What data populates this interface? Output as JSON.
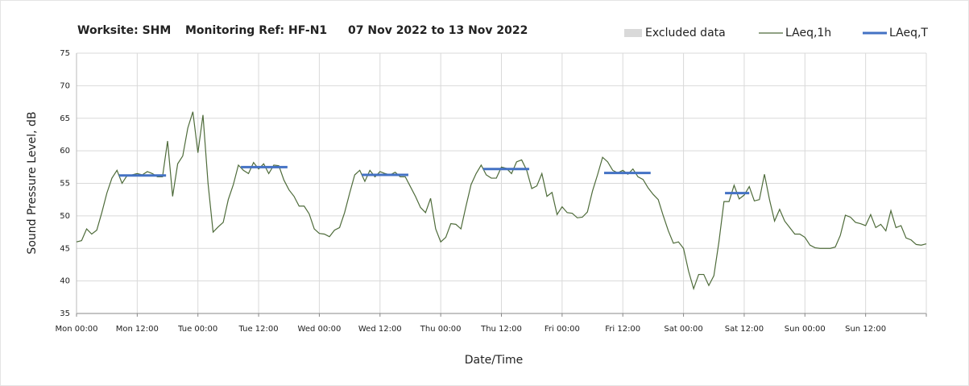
{
  "chart_data": {
    "type": "line",
    "title": [
      "Worksite: SHM",
      "Monitoring Ref: HF-N1",
      "07 Nov 2022 to 13 Nov 2022"
    ],
    "x_label": "Date/Time",
    "y_label": "Sound Pressure Level, dB",
    "xlim": [
      0,
      168
    ],
    "xticks": [
      {
        "value": 0,
        "label": "Mon 00:00"
      },
      {
        "value": 12,
        "label": "Mon 12:00"
      },
      {
        "value": 24,
        "label": "Tue 00:00"
      },
      {
        "value": 36,
        "label": "Tue 12:00"
      },
      {
        "value": 48,
        "label": "Wed 00:00"
      },
      {
        "value": 60,
        "label": "Wed 12:00"
      },
      {
        "value": 72,
        "label": "Thu 00:00"
      },
      {
        "value": 84,
        "label": "Thu 12:00"
      },
      {
        "value": 96,
        "label": "Fri 00:00"
      },
      {
        "value": 108,
        "label": "Fri 12:00"
      },
      {
        "value": 120,
        "label": "Sat 00:00"
      },
      {
        "value": 132,
        "label": "Sat 12:00"
      },
      {
        "value": 144,
        "label": "Sun 00:00"
      },
      {
        "value": 156,
        "label": "Sun 12:00"
      }
    ],
    "ylim": [
      35,
      75
    ],
    "yticks": [
      35,
      40,
      45,
      50,
      55,
      60,
      65,
      70,
      75
    ],
    "grid": true,
    "legend": "top-right",
    "series": [
      {
        "name": "Excluded data",
        "color": "#d9d9d9",
        "periods": []
      },
      {
        "name": "LAeq,1h",
        "color": "#4e6b3a",
        "x": [
          0,
          1,
          2,
          3,
          4,
          5,
          6,
          7,
          8,
          9,
          10,
          11,
          12,
          13,
          14,
          15,
          16,
          17,
          18,
          19,
          20,
          21,
          22,
          23,
          24,
          25,
          26,
          27,
          28,
          29,
          30,
          31,
          32,
          33,
          34,
          35,
          36,
          37,
          38,
          39,
          40,
          41,
          42,
          43,
          44,
          45,
          46,
          47,
          48,
          49,
          50,
          51,
          52,
          53,
          54,
          55,
          56,
          57,
          58,
          59,
          60,
          61,
          62,
          63,
          64,
          65,
          66,
          67,
          68,
          69,
          70,
          71,
          72,
          73,
          74,
          75,
          76,
          77,
          78,
          79,
          80,
          81,
          82,
          83,
          84,
          85,
          86,
          87,
          88,
          89,
          90,
          91,
          92,
          93,
          94,
          95,
          96,
          97,
          98,
          99,
          100,
          101,
          102,
          103,
          104,
          105,
          106,
          107,
          108,
          109,
          110,
          111,
          112,
          113,
          114,
          115,
          116,
          117,
          118,
          119,
          120,
          121,
          122,
          123,
          124,
          125,
          126,
          127,
          128,
          129,
          130,
          131,
          132,
          133,
          134,
          135,
          136,
          137,
          138,
          139,
          140,
          141,
          142,
          143,
          144,
          145,
          146,
          147,
          148,
          149,
          150,
          151,
          152,
          153,
          154,
          155,
          156,
          157,
          158,
          159,
          160,
          161,
          162,
          163,
          164,
          165,
          166,
          167,
          168
        ],
        "values": [
          46,
          46.2,
          48,
          47.2,
          47.8,
          50.5,
          53.5,
          55.8,
          57,
          55,
          56.2,
          56.3,
          56.5,
          56.3,
          56.8,
          56.5,
          56,
          56,
          61.5,
          53,
          58,
          59.2,
          63.5,
          66,
          59.7,
          65.5,
          55,
          47.5,
          48.3,
          49,
          52.5,
          54.8,
          57.8,
          57,
          56.5,
          58.2,
          57.2,
          58,
          56.5,
          57.8,
          57.7,
          55.5,
          54,
          53,
          51.5,
          51.5,
          50.3,
          48,
          47.3,
          47.2,
          46.8,
          47.8,
          48.2,
          50.5,
          53.5,
          56.3,
          57,
          55.3,
          57,
          56,
          56.8,
          56.5,
          56.3,
          56.7,
          56,
          56,
          54.5,
          53,
          51.3,
          50.5,
          52.7,
          48,
          46,
          46.7,
          48.8,
          48.7,
          48,
          51.5,
          54.8,
          56.5,
          57.8,
          56.3,
          55.8,
          55.8,
          57.5,
          57.3,
          56.5,
          58.3,
          58.6,
          57,
          54.2,
          54.6,
          56.5,
          53,
          53.6,
          50.2,
          51.4,
          50.5,
          50.4,
          49.7,
          49.8,
          50.6,
          53.8,
          56.3,
          59,
          58.3,
          57,
          56.6,
          57,
          56.4,
          57.2,
          56,
          55.6,
          54.3,
          53.3,
          52.5,
          50,
          47.7,
          45.8,
          46,
          45,
          41.5,
          38.8,
          41,
          41,
          39.3,
          40.8,
          46,
          52.2,
          52.2,
          54.7,
          52.6,
          53.2,
          54.5,
          52.3,
          52.5,
          56.4,
          52.5,
          49.2,
          51,
          49.2,
          48.2,
          47.2,
          47.2,
          46.7,
          45.5,
          45.1,
          45,
          45,
          45,
          45.2,
          47,
          50.1,
          49.8,
          49,
          48.8,
          48.5,
          50.2,
          48.2,
          48.7,
          47.7,
          50.8,
          48.2,
          48.5,
          46.6,
          46.3,
          45.6,
          45.5,
          45.7
        ]
      },
      {
        "name": "LAeq,T",
        "color": "#4472c4",
        "periods": [
          {
            "start": 8.4,
            "end": 17.7,
            "value": 56.2
          },
          {
            "start": 32.5,
            "end": 41.7,
            "value": 57.5
          },
          {
            "start": 56.4,
            "end": 65.6,
            "value": 56.3
          },
          {
            "start": 80.4,
            "end": 89.5,
            "value": 57.2
          },
          {
            "start": 104.3,
            "end": 113.5,
            "value": 56.6
          },
          {
            "start": 128.2,
            "end": 133,
            "value": 53.5
          }
        ]
      }
    ]
  }
}
